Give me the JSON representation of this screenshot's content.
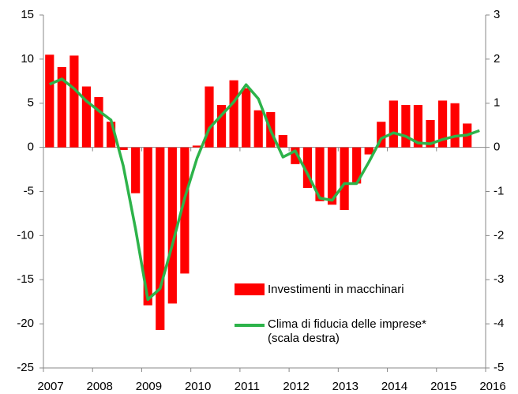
{
  "chart_data": {
    "type": "bar+line",
    "x": [
      2007.125,
      2007.375,
      2007.625,
      2007.875,
      2008.125,
      2008.375,
      2008.625,
      2008.875,
      2009.125,
      2009.375,
      2009.625,
      2009.875,
      2010.125,
      2010.375,
      2010.625,
      2010.875,
      2011.125,
      2011.375,
      2011.625,
      2011.875,
      2012.125,
      2012.375,
      2012.625,
      2012.875,
      2013.125,
      2013.375,
      2013.625,
      2013.875,
      2014.125,
      2014.375,
      2014.625,
      2014.875,
      2015.125,
      2015.375,
      2015.625,
      2015.875
    ],
    "series": [
      {
        "name": "Investimenti in macchinari",
        "type": "bar",
        "color": "#ff0000",
        "values": [
          10.5,
          9.1,
          10.4,
          6.9,
          5.7,
          2.9,
          -0.3,
          -5.2,
          -17.9,
          -20.7,
          -17.7,
          -14.3,
          0.2,
          6.9,
          4.8,
          7.6,
          6.7,
          4.2,
          4.0,
          1.4,
          -1.9,
          -4.6,
          -6.1,
          -6.5,
          -7.1,
          -4.1,
          -0.8,
          2.9,
          5.3,
          4.8,
          4.8,
          3.1,
          5.3,
          5.0,
          2.7,
          null
        ]
      },
      {
        "name": "Clima di fiducia delle imprese* (scala destra)",
        "type": "line",
        "axis": "y2",
        "color": "#2db34a",
        "values": [
          1.43,
          1.55,
          1.33,
          1.05,
          0.83,
          0.62,
          -0.42,
          -1.85,
          -3.45,
          -3.2,
          -2.2,
          -1.15,
          -0.25,
          0.43,
          0.73,
          1.03,
          1.42,
          1.1,
          0.38,
          -0.22,
          -0.08,
          -0.6,
          -1.15,
          -1.2,
          -0.82,
          -0.82,
          -0.33,
          0.2,
          0.33,
          0.25,
          0.1,
          0.08,
          0.18,
          0.25,
          0.28,
          0.38
        ]
      }
    ],
    "xlim": [
      2007,
      2016
    ],
    "xticks": [
      2007,
      2008,
      2009,
      2010,
      2011,
      2012,
      2013,
      2014,
      2015,
      2016
    ],
    "ylim": [
      -25,
      15
    ],
    "yticks": [
      -25,
      -20,
      -15,
      -10,
      -5,
      0,
      5,
      10,
      15
    ],
    "y2lim": [
      -5,
      3
    ],
    "y2ticks": [
      -5,
      -4,
      -3,
      -2,
      -1,
      0,
      1,
      2,
      3
    ]
  }
}
